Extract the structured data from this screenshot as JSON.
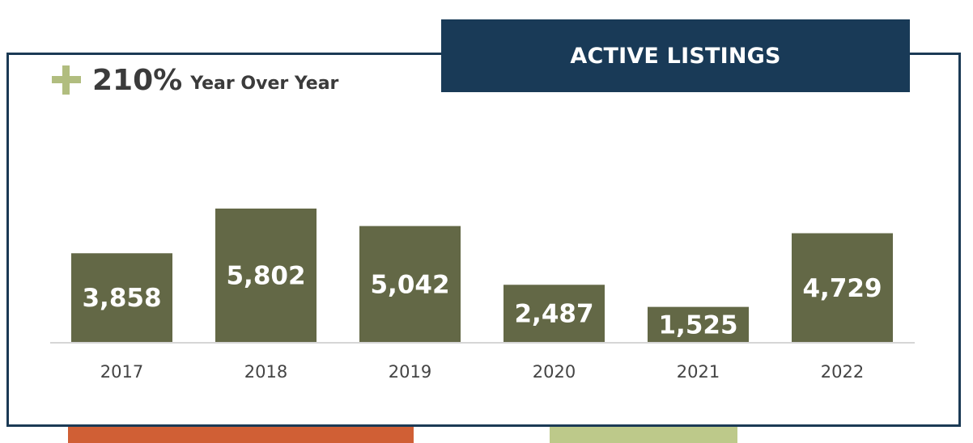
{
  "title": "ACTIVE LISTINGS",
  "yoy": {
    "value": "210%",
    "label": "Year Over Year"
  },
  "colors": {
    "bar": "#636846",
    "title_bg": "#193a57",
    "plus": "#b1bd7f",
    "deco_orange": "#d05f35",
    "deco_green": "#bdc98a"
  },
  "chart_data": {
    "type": "bar",
    "title": "ACTIVE LISTINGS",
    "categories": [
      "2017",
      "2018",
      "2019",
      "2020",
      "2021",
      "2022"
    ],
    "values": [
      3858,
      5802,
      5042,
      2487,
      1525,
      4729
    ],
    "value_labels": [
      "3,858",
      "5,802",
      "5,042",
      "2,487",
      "1,525",
      "4,729"
    ],
    "xlabel": "",
    "ylabel": "",
    "grid": false,
    "legend": "none"
  }
}
